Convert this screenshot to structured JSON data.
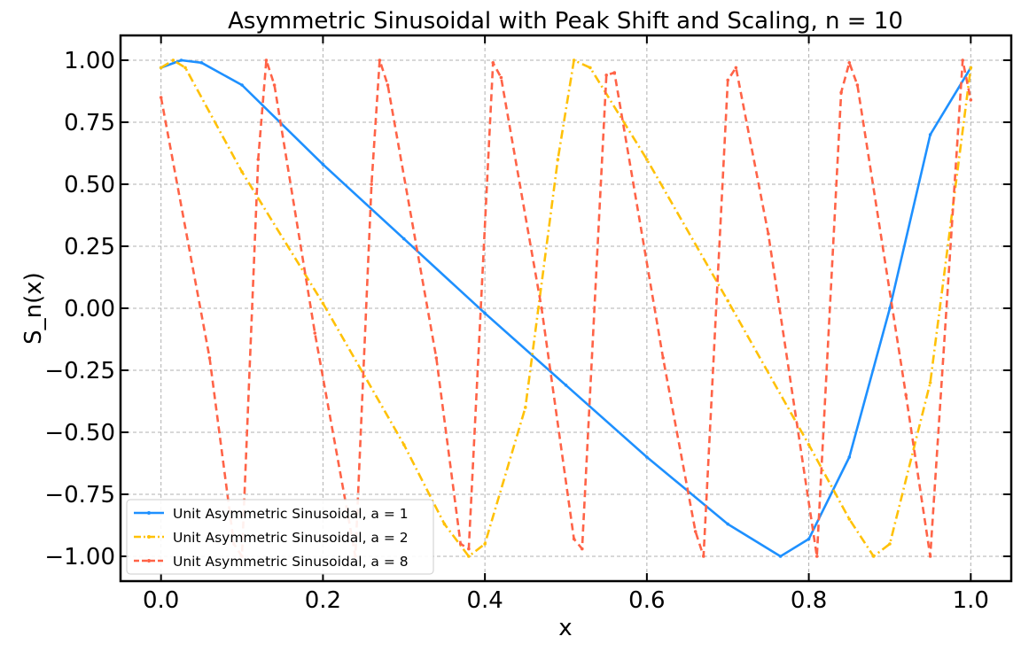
{
  "chart_data": {
    "type": "line",
    "title": "Asymmetric Sinusoidal with Peak Shift and Scaling, n = 10",
    "xlabel": "x",
    "ylabel": "S_n(x)",
    "xlim": [
      -0.05,
      1.05
    ],
    "ylim": [
      -1.1,
      1.1
    ],
    "xticks": [
      0.0,
      0.2,
      0.4,
      0.6,
      0.8,
      1.0
    ],
    "xtick_labels": [
      "0.0",
      "0.2",
      "0.4",
      "0.6",
      "0.8",
      "1.0"
    ],
    "yticks": [
      1.0,
      0.75,
      0.5,
      0.25,
      0.0,
      -0.25,
      -0.5,
      -0.75,
      -1.0
    ],
    "ytick_labels": [
      "1.00",
      "0.75",
      "0.50",
      "0.25",
      "0.00",
      "−0.25",
      "−0.50",
      "−0.75",
      "−1.00"
    ],
    "grid": true,
    "legend_position": "lower-left",
    "series": [
      {
        "name": "Unit Asymmetric Sinusoidal, a = 1",
        "color": "#1e90ff",
        "line_style": "solid",
        "marker": "dot",
        "points": [
          [
            0.0,
            0.97
          ],
          [
            0.025,
            1.0
          ],
          [
            0.05,
            0.99
          ],
          [
            0.1,
            0.9
          ],
          [
            0.2,
            0.58
          ],
          [
            0.3,
            0.28
          ],
          [
            0.4,
            -0.02
          ],
          [
            0.5,
            -0.31
          ],
          [
            0.6,
            -0.6
          ],
          [
            0.7,
            -0.87
          ],
          [
            0.765,
            -1.0
          ],
          [
            0.8,
            -0.93
          ],
          [
            0.85,
            -0.6
          ],
          [
            0.9,
            0.0
          ],
          [
            0.95,
            0.7
          ],
          [
            1.0,
            0.97
          ]
        ]
      },
      {
        "name": "Unit Asymmetric Sinusoidal, a = 2",
        "color": "#ffc107",
        "line_style": "dashdot",
        "marker": "dot",
        "points": [
          [
            0.0,
            0.97
          ],
          [
            0.015,
            1.0
          ],
          [
            0.03,
            0.97
          ],
          [
            0.1,
            0.55
          ],
          [
            0.2,
            0.02
          ],
          [
            0.3,
            -0.55
          ],
          [
            0.35,
            -0.87
          ],
          [
            0.38,
            -1.0
          ],
          [
            0.4,
            -0.95
          ],
          [
            0.45,
            -0.4
          ],
          [
            0.49,
            0.6
          ],
          [
            0.51,
            1.0
          ],
          [
            0.53,
            0.97
          ],
          [
            0.6,
            0.6
          ],
          [
            0.7,
            0.03
          ],
          [
            0.8,
            -0.55
          ],
          [
            0.85,
            -0.85
          ],
          [
            0.88,
            -1.0
          ],
          [
            0.9,
            -0.95
          ],
          [
            0.95,
            -0.3
          ],
          [
            1.0,
            0.97
          ]
        ]
      },
      {
        "name": "Unit Asymmetric Sinusoidal, a = 8",
        "color": "#ff6347",
        "line_style": "dashed",
        "marker": "dot",
        "points": [
          [
            0.0,
            0.85
          ],
          [
            0.06,
            -0.2
          ],
          [
            0.09,
            -0.95
          ],
          [
            0.1,
            -1.0
          ],
          [
            0.12,
            0.6
          ],
          [
            0.13,
            1.0
          ],
          [
            0.14,
            0.9
          ],
          [
            0.19,
            -0.1
          ],
          [
            0.24,
            -1.0
          ],
          [
            0.26,
            0.5
          ],
          [
            0.27,
            1.0
          ],
          [
            0.28,
            0.9
          ],
          [
            0.34,
            -0.2
          ],
          [
            0.37,
            -0.95
          ],
          [
            0.38,
            -0.97
          ],
          [
            0.41,
            0.99
          ],
          [
            0.42,
            0.93
          ],
          [
            0.47,
            0.0
          ],
          [
            0.51,
            -0.93
          ],
          [
            0.52,
            -0.97
          ],
          [
            0.55,
            0.94
          ],
          [
            0.56,
            0.95
          ],
          [
            0.62,
            -0.2
          ],
          [
            0.66,
            -0.9
          ],
          [
            0.67,
            -1.0
          ],
          [
            0.7,
            0.92
          ],
          [
            0.71,
            0.97
          ],
          [
            0.75,
            0.3
          ],
          [
            0.81,
            -1.0
          ],
          [
            0.84,
            0.87
          ],
          [
            0.85,
            0.99
          ],
          [
            0.86,
            0.9
          ],
          [
            0.92,
            -0.35
          ],
          [
            0.95,
            -1.0
          ],
          [
            0.99,
            1.0
          ],
          [
            1.0,
            0.84
          ]
        ]
      }
    ]
  }
}
